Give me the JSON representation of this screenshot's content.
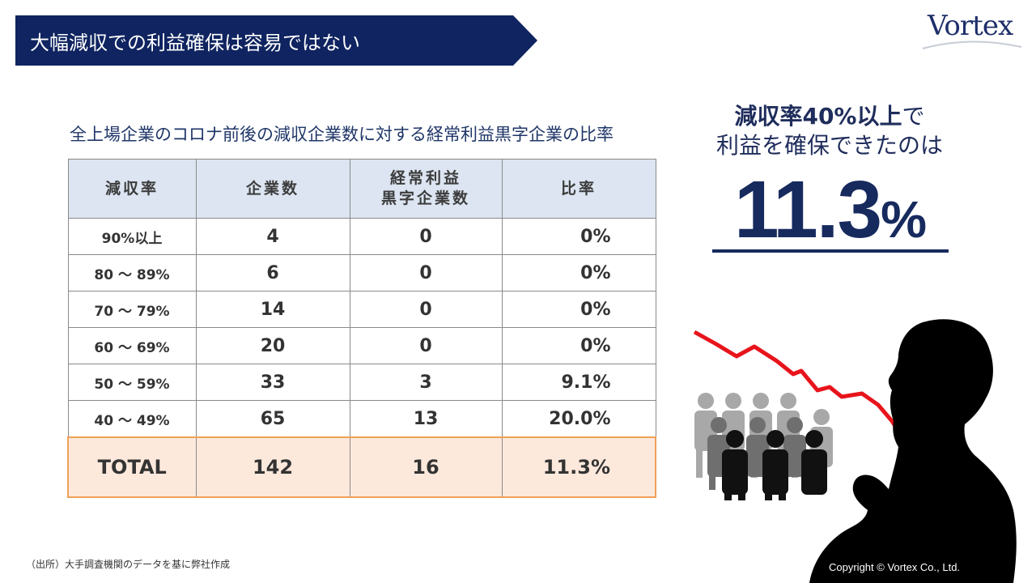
{
  "slide": {
    "title": "大幅減収での利益確保は容易ではない",
    "logo": "Vortex",
    "source": "（出所）大手調査機関のデータを基に弊社作成",
    "copyright": "Copyright © Vortex Co., Ltd."
  },
  "table": {
    "caption": "全上場企業のコロナ前後の減収企業数に対する経常利益黒字企業の比率",
    "headers": [
      "減収率",
      "企業数",
      "経常利益",
      "黒字企業数",
      "比率"
    ],
    "rows": [
      [
        "90%以上",
        "4",
        "0",
        "0%"
      ],
      [
        "80 ～ 89%",
        "6",
        "0",
        "0%"
      ],
      [
        "70 ～ 79%",
        "14",
        "0",
        "0%"
      ],
      [
        "60 ～ 69%",
        "20",
        "0",
        "0%"
      ],
      [
        "50 ～ 59%",
        "33",
        "3",
        "9.1%"
      ],
      [
        "40 ～ 49%",
        "65",
        "13",
        "20.0%"
      ]
    ],
    "total": [
      "TOTAL",
      "142",
      "16",
      "11.3%"
    ]
  },
  "highlight": {
    "line1_bold": "減収率40%以上",
    "line1_rest": "で",
    "line2": "利益を確保できたのは",
    "value": "11.3",
    "unit": "%"
  },
  "colors": {
    "navy": "#0f2460",
    "header_fill": "#dce5f1",
    "total_fill": "#fde9dc",
    "total_border": "#f0a058",
    "trend_line": "#e8141c"
  },
  "icons": [
    "decline-trend-arrow",
    "crowd-people-icon",
    "thinking-man-silhouette"
  ]
}
